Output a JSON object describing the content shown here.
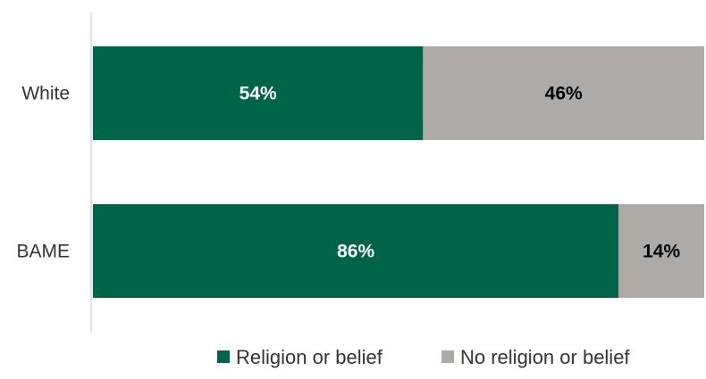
{
  "chart_data": {
    "type": "bar",
    "orientation": "horizontal",
    "stacked": true,
    "percent_stacked": true,
    "categories": [
      "White",
      "BAME"
    ],
    "series": [
      {
        "name": "Religion or belief",
        "values": [
          54,
          86
        ],
        "labels": [
          "54%",
          "86%"
        ],
        "color": "#006548",
        "label_color": "#ffffff"
      },
      {
        "name": "No religion or belief",
        "values": [
          46,
          14
        ],
        "labels": [
          "46%",
          "14%"
        ],
        "color": "#adaaa8",
        "label_color": "#000000"
      }
    ],
    "xlim": [
      0,
      100
    ],
    "grid": false,
    "legend_position": "bottom"
  }
}
